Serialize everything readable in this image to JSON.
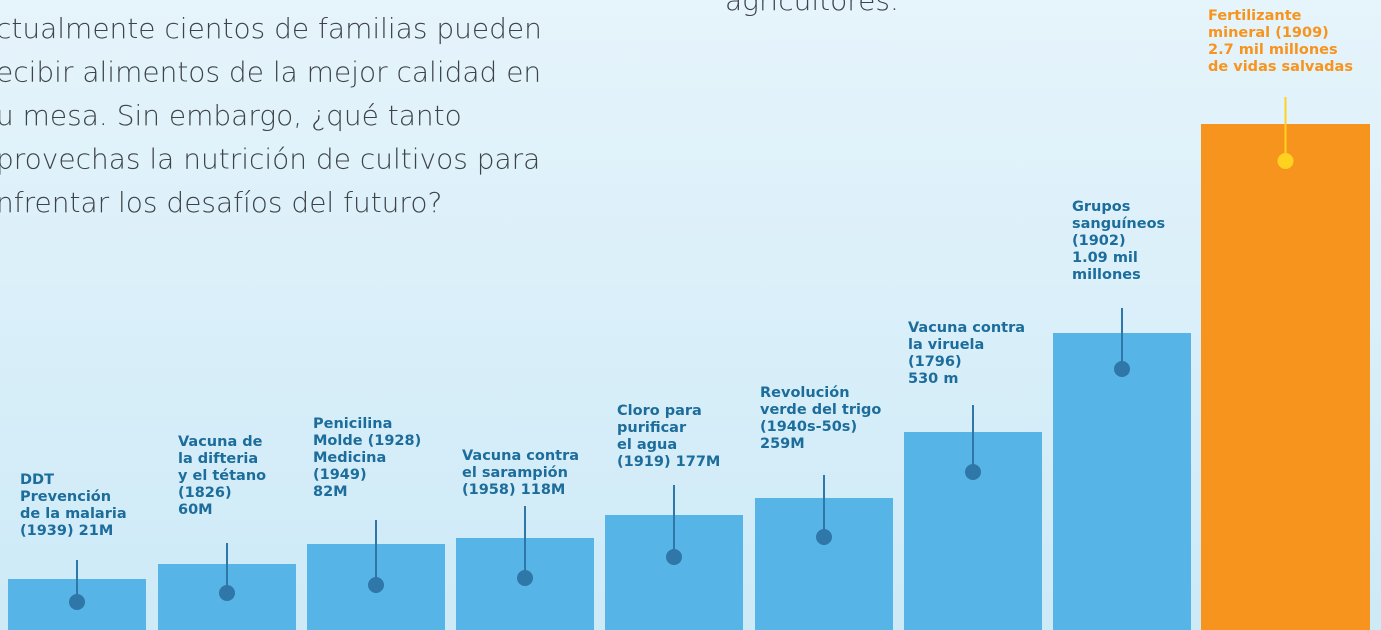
{
  "intro": {
    "lines": [
      "ctualmente cientos de familias pueden",
      "ecibir alimentos de la mejor calidad en",
      "u mesa. Sin embargo, ¿qué tanto",
      "provechas la nutrición de cultivos para",
      "nfrentar los desafíos del futuro?"
    ]
  },
  "top_text": "agricultores.",
  "items": [
    {
      "lines": [
        "DDT",
        "Prevención",
        "de la malaria",
        "(1939) 21M"
      ]
    },
    {
      "lines": [
        "Vacuna de",
        "la difteria",
        "y el tétano",
        "(1826)",
        "60M"
      ]
    },
    {
      "lines": [
        "Penicilina",
        "Molde (1928)",
        "Medicina",
        "(1949)",
        "82M"
      ]
    },
    {
      "lines": [
        "Vacuna contra",
        "el sarampión",
        "(1958) 118M"
      ]
    },
    {
      "lines": [
        "Cloro para",
        "purificar",
        "el agua",
        "(1919) 177M"
      ]
    },
    {
      "lines": [
        "Revolución",
        "verde del trigo",
        "(1940s-50s)",
        "259M"
      ]
    },
    {
      "lines": [
        "Vacuna contra",
        "la viruela",
        "(1796)",
        "530 m"
      ]
    },
    {
      "lines": [
        "Grupos",
        "sanguíneos",
        "(1902)",
        "1.09 mil",
        "millones"
      ]
    },
    {
      "lines": [
        "Fertilizante",
        "mineral (1909)",
        "2.7 mil millones",
        "de vidas salvadas"
      ]
    }
  ]
}
